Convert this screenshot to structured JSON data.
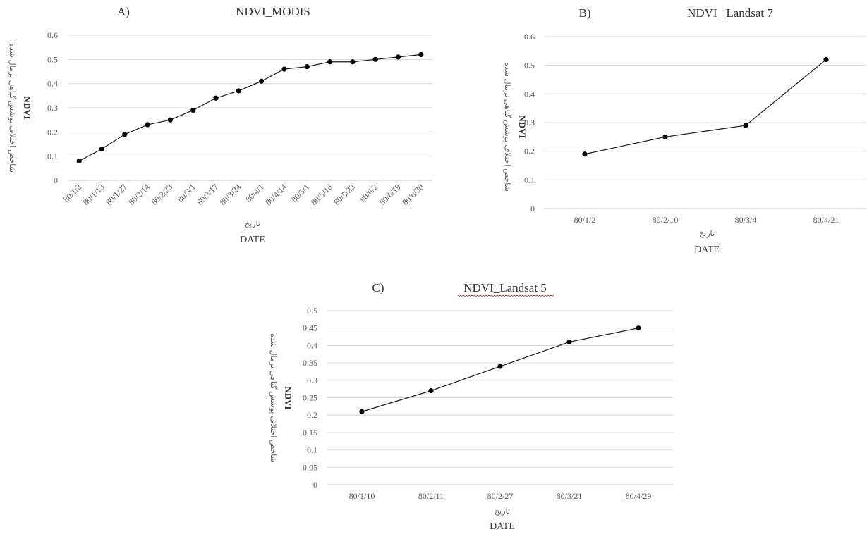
{
  "chart_data": [
    {
      "type": "line",
      "panel_label": "A)",
      "title": "NDVI_MODIS",
      "ylabel_fa": "شاخص اختلاف پوشش گیاهی نرمال شده",
      "ylabel_en": "NDVI",
      "xlabel_fa": "تاریخ",
      "xlabel_en": "DATE",
      "ylim": [
        0,
        0.6
      ],
      "yticks": [
        "0",
        "0.1",
        "0.2",
        "0.3",
        "0.4",
        "0.5",
        "0.6"
      ],
      "grid": true,
      "x_ticks_rotated": true,
      "categories": [
        "80/1/2",
        "80/1/13",
        "80/1/27",
        "80/2/14",
        "80/2/23",
        "80/3/1",
        "80/3/17",
        "80/3/24",
        "80/4/1",
        "80/4/14",
        "80/5/1",
        "80/5/18",
        "80/5/23",
        "80/6/2",
        "80/6/19",
        "80/6/30"
      ],
      "series": [
        {
          "values": [
            0.08,
            0.13,
            0.19,
            0.23,
            0.25,
            0.29,
            0.34,
            0.37,
            0.41,
            0.46,
            0.47,
            0.49,
            0.49,
            0.5,
            0.51,
            0.52
          ]
        }
      ]
    },
    {
      "type": "line",
      "panel_label": "B)",
      "title": "NDVI_ Landsat 7",
      "ylabel_fa": "شاخص اختلاف پوشش گیاهی نرمال شده",
      "ylabel_en": "NDVI",
      "xlabel_fa": "تاریخ",
      "xlabel_en": "DATE",
      "ylim": [
        0,
        0.6
      ],
      "yticks": [
        "0",
        "0.1",
        "0.2",
        "0.3",
        "0.4",
        "0.5",
        "0.6"
      ],
      "grid": true,
      "x_ticks_rotated": false,
      "categories": [
        "80/1/2",
        "80/2/10",
        "80/3/4",
        "80/4/21"
      ],
      "series": [
        {
          "values": [
            0.19,
            0.25,
            0.29,
            0.52
          ]
        }
      ]
    },
    {
      "type": "line",
      "panel_label": "C)",
      "title": "NDVI_Landsat 5",
      "ylabel_fa": "شاخص اختلاف پوشش گیاهی نرمال شده",
      "ylabel_en": "NDVI",
      "xlabel_fa": "تاریخ",
      "xlabel_en": "DATE",
      "ylim": [
        0,
        0.5
      ],
      "yticks": [
        "0",
        "0.05",
        "0.1",
        "0.15",
        "0.2",
        "0.25",
        "0.3",
        "0.35",
        "0.4",
        "0.45",
        "0.5"
      ],
      "grid": true,
      "x_ticks_rotated": false,
      "categories": [
        "80/1/10",
        "80/2/11",
        "80/2/27",
        "80/3/21",
        "80/4/29"
      ],
      "series": [
        {
          "values": [
            0.21,
            0.27,
            0.34,
            0.41,
            0.45
          ]
        }
      ]
    }
  ]
}
